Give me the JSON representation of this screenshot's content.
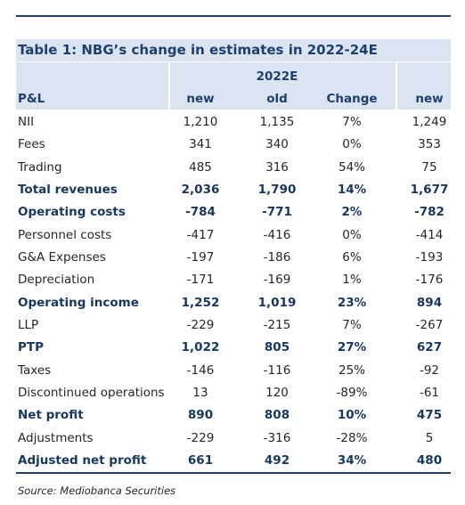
{
  "table": {
    "title": "Table 1: NBG’s change in estimates in 2022-24E",
    "group_header": "2022E",
    "columns": [
      "P&L",
      "new",
      "old",
      "Change",
      "new"
    ],
    "rows": [
      {
        "cells": [
          "NII",
          "1,210",
          "1,135",
          "7%",
          "1,249"
        ],
        "bold": false
      },
      {
        "cells": [
          "Fees",
          "341",
          "340",
          "0%",
          "353"
        ],
        "bold": false
      },
      {
        "cells": [
          "Trading",
          "485",
          "316",
          "54%",
          "75"
        ],
        "bold": false
      },
      {
        "cells": [
          "Total revenues",
          "2,036",
          "1,790",
          "14%",
          "1,677"
        ],
        "bold": true
      },
      {
        "cells": [
          "Operating costs",
          "-784",
          "-771",
          "2%",
          "-782"
        ],
        "bold": true
      },
      {
        "cells": [
          "Personnel costs",
          "-417",
          "-416",
          "0%",
          "-414"
        ],
        "bold": false
      },
      {
        "cells": [
          "G&A Expenses",
          "-197",
          "-186",
          "6%",
          "-193"
        ],
        "bold": false
      },
      {
        "cells": [
          "Depreciation",
          "-171",
          "-169",
          "1%",
          "-176"
        ],
        "bold": false
      },
      {
        "cells": [
          "Operating income",
          "1,252",
          "1,019",
          "23%",
          "894"
        ],
        "bold": true
      },
      {
        "cells": [
          "LLP",
          "-229",
          "-215",
          "7%",
          "-267"
        ],
        "bold": false
      },
      {
        "cells": [
          "PTP",
          "1,022",
          "805",
          "27%",
          "627"
        ],
        "bold": true
      },
      {
        "cells": [
          "Taxes",
          "-146",
          "-116",
          "25%",
          "-92"
        ],
        "bold": false
      },
      {
        "cells": [
          "Discontinued operations",
          "13",
          "120",
          "-89%",
          "-61"
        ],
        "bold": false
      },
      {
        "cells": [
          "Net profit",
          "890",
          "808",
          "10%",
          "475"
        ],
        "bold": true
      },
      {
        "cells": [
          "Adjustments",
          "-229",
          "-316",
          "-28%",
          "5"
        ],
        "bold": false
      },
      {
        "cells": [
          "Adjusted net profit",
          "661",
          "492",
          "34%",
          "480"
        ],
        "bold": true
      }
    ]
  },
  "footer": {
    "source": "Source: Mediobanca Securities"
  }
}
